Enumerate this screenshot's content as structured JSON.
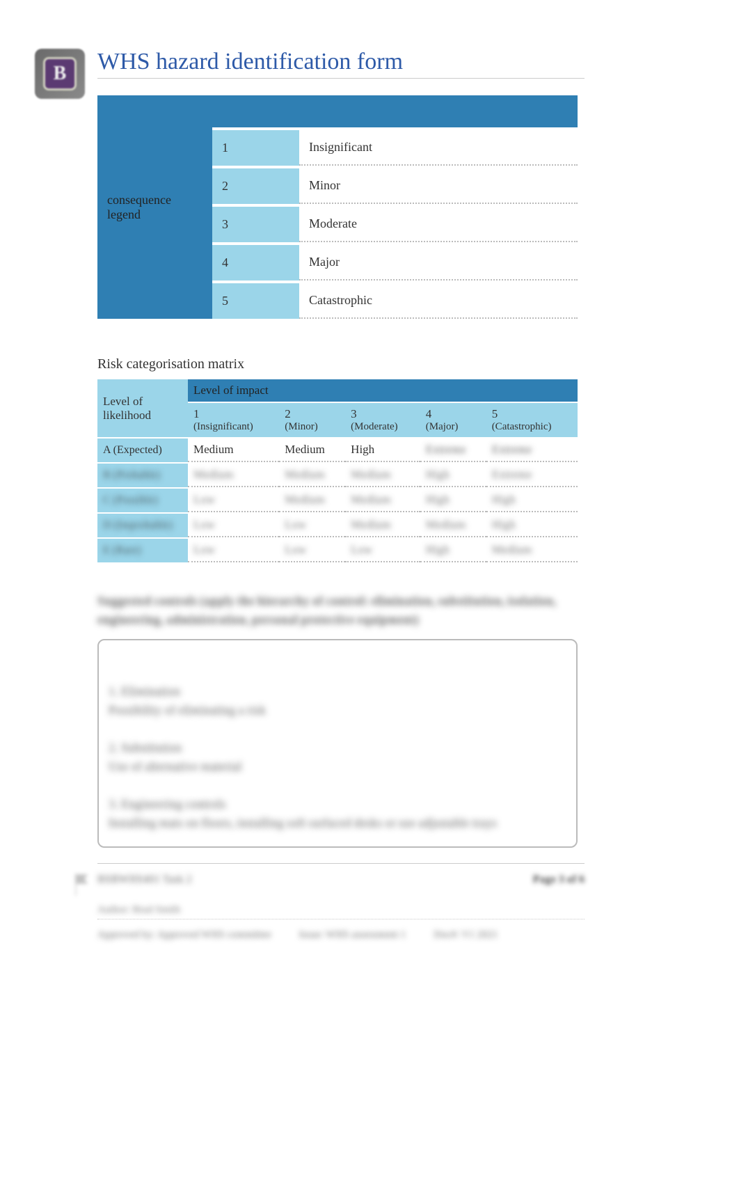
{
  "title": "WHS hazard identification form",
  "logo_letter": "B",
  "colors": {
    "title": "#2e5aa8",
    "header_dark": "#2f7fb3",
    "header_light": "#9bd5e9",
    "cell_bg": "#ffffff",
    "dotted_border": "#bbbbbb",
    "text": "#333333"
  },
  "legend": {
    "heading": "consequence legend",
    "rows": [
      {
        "num": "1",
        "name": "Insignificant"
      },
      {
        "num": "2",
        "name": "Minor"
      },
      {
        "num": "3",
        "name": "Moderate"
      },
      {
        "num": "4",
        "name": "Major"
      },
      {
        "num": "5",
        "name": "Catastrophic"
      }
    ]
  },
  "matrix": {
    "title": "Risk categorisation matrix",
    "likelihood_label": "Level of likelihood",
    "impact_label": "Level of impact",
    "columns": [
      {
        "num": "1",
        "name": "(Insignificant)"
      },
      {
        "num": "2",
        "name": "(Minor)"
      },
      {
        "num": "3",
        "name": "(Moderate)"
      },
      {
        "num": "4",
        "name": "(Major)"
      },
      {
        "num": "5",
        "name": "(Catastrophic)"
      }
    ],
    "rows": [
      {
        "label": "A (Expected)",
        "cells": [
          "Medium",
          "Medium",
          "High",
          "Extreme",
          "Extreme"
        ],
        "blurred": false,
        "blur_from": 3
      },
      {
        "label": "B (Probable)",
        "cells": [
          "Medium",
          "Medium",
          "Medium",
          "High",
          "Extreme"
        ],
        "blurred": true
      },
      {
        "label": "C (Possible)",
        "cells": [
          "Low",
          "Medium",
          "Medium",
          "High",
          "High"
        ],
        "blurred": true
      },
      {
        "label": "D (Improbable)",
        "cells": [
          "Low",
          "Low",
          "Medium",
          "Medium",
          "High"
        ],
        "blurred": true
      },
      {
        "label": "E (Rare)",
        "cells": [
          "Low",
          "Low",
          "Low",
          "High",
          "Medium"
        ],
        "blurred": true
      }
    ]
  },
  "controls": {
    "heading": "Suggested controls (apply the hierarchy of control: elimination, substitution, isolation, engineering, administration, personal protective equipment)",
    "body": "1. Elimination\nPossibility of eliminating a risk\n\n2. Substitution\nUse of alternative material\n\n3. Engineering controls\nInstalling mats on floors, installing soft surfaced desks or use adjustable trays"
  },
  "footer": {
    "left": "BSBWHS401 Task 2",
    "right": "Page 3 of 6",
    "sub": "Author: Brad Smith",
    "approved_label": "Approved by:",
    "approved_value": "Approved WHS committee",
    "issue_label": "Issue:",
    "issue_value": "WHS assessment 1",
    "doc_label": "Doc#:",
    "doc_value": "V1 2021"
  }
}
